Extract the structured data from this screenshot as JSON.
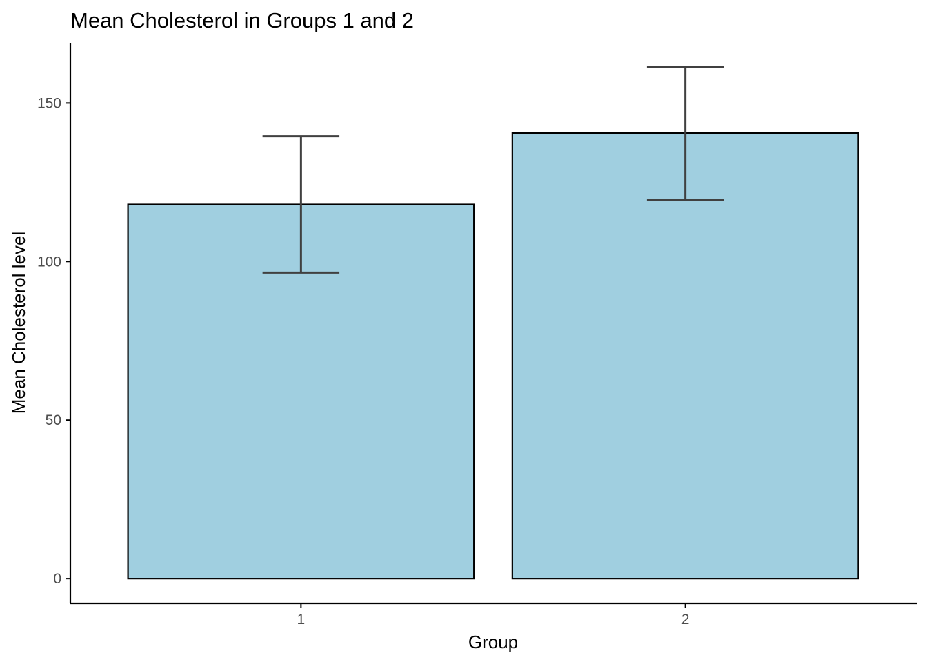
{
  "chart_data": {
    "type": "bar",
    "title": "Mean Cholesterol in Groups 1 and 2",
    "xlabel": "Group",
    "ylabel": "Mean Cholesterol level",
    "categories": [
      "1",
      "2"
    ],
    "values": [
      118,
      140.5
    ],
    "error_bars": [
      {
        "lower": 96.5,
        "upper": 139.5
      },
      {
        "lower": 119.5,
        "upper": 161.5
      }
    ],
    "ylim": [
      -7.8,
      169
    ],
    "yticks": [
      0,
      50,
      100,
      150
    ],
    "grid": false,
    "legend": "none",
    "colors": {
      "bar_fill": "#a0cfe0",
      "bar_outline": "#000000",
      "error_bar": "#404040",
      "axis": "#000000",
      "tick_label": "#4d4d4d"
    }
  }
}
